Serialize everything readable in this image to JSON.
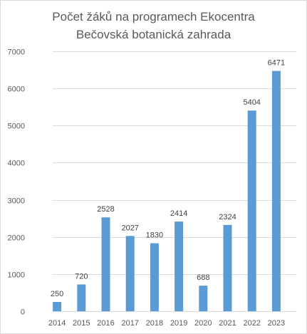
{
  "chart_data": {
    "type": "bar",
    "title_lines": [
      "Počet žáků na programech Ekocentra",
      "Bečovská botanická zahrada"
    ],
    "categories": [
      "2014",
      "2015",
      "2016",
      "2017",
      "2018",
      "2019",
      "2020",
      "2021",
      "2022",
      "2023"
    ],
    "values": [
      250,
      720,
      2528,
      2027,
      1830,
      2414,
      688,
      2324,
      5404,
      6471
    ],
    "value_labels": [
      "250",
      "720",
      "2528",
      "2027",
      "1830",
      "2414",
      "688",
      "2324",
      "5404",
      "6471"
    ],
    "y_ticks": [
      "0",
      "1000",
      "2000",
      "3000",
      "4000",
      "5000",
      "6000",
      "7000"
    ],
    "ylim": [
      0,
      7000
    ],
    "grid": true,
    "legend": "none",
    "bar_color": "#5b9bd5",
    "grid_color": "#d9d9d9",
    "text_color": "#595959"
  }
}
